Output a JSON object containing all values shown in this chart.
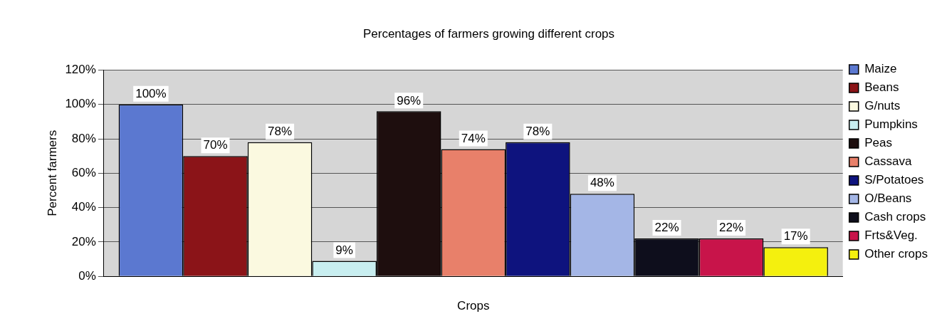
{
  "chart_data": {
    "type": "bar",
    "title": "Percentages of farmers growing different crops",
    "xlabel": "Crops",
    "ylabel": "Percent farmers",
    "categories": [
      null
    ],
    "series": [
      {
        "name": "Maize",
        "color": "#5b78d0",
        "values": [
          100
        ],
        "value_labels": [
          "100%"
        ]
      },
      {
        "name": "Beans",
        "color": "#8b1418",
        "values": [
          70
        ],
        "value_labels": [
          "70%"
        ]
      },
      {
        "name": "G/nuts",
        "color": "#fbf9e0",
        "values": [
          78
        ],
        "value_labels": [
          "78%"
        ]
      },
      {
        "name": "Pumpkins",
        "color": "#c8eef0",
        "values": [
          9
        ],
        "value_labels": [
          "9%"
        ]
      },
      {
        "name": "Peas",
        "color": "#1e0e0e",
        "values": [
          96
        ],
        "value_labels": [
          "96%"
        ]
      },
      {
        "name": "Cassava",
        "color": "#e8806a",
        "values": [
          74
        ],
        "value_labels": [
          "74%"
        ]
      },
      {
        "name": "S/Potatoes",
        "color": "#0e137e",
        "values": [
          78
        ],
        "value_labels": [
          "78%"
        ]
      },
      {
        "name": "O/Beans",
        "color": "#a4b6e6",
        "values": [
          48
        ],
        "value_labels": [
          "48%"
        ]
      },
      {
        "name": "Cash crops",
        "color": "#0e0e1c",
        "values": [
          22
        ],
        "value_labels": [
          "22%"
        ]
      },
      {
        "name": "Frts&Veg.",
        "color": "#c8144a",
        "values": [
          22
        ],
        "value_labels": [
          "22%"
        ]
      },
      {
        "name": "Other crops",
        "color": "#f4f00e",
        "values": [
          17
        ],
        "value_labels": [
          "17%"
        ]
      }
    ],
    "ylim": [
      0,
      120
    ],
    "yticks": [
      {
        "value": 0,
        "label": "0%"
      },
      {
        "value": 20,
        "label": "20%"
      },
      {
        "value": 40,
        "label": "40%"
      },
      {
        "value": 60,
        "label": "60%"
      },
      {
        "value": 80,
        "label": "80%"
      },
      {
        "value": 100,
        "label": "100%"
      },
      {
        "value": 120,
        "label": "120%"
      }
    ],
    "grid": "y",
    "legend": "right"
  }
}
